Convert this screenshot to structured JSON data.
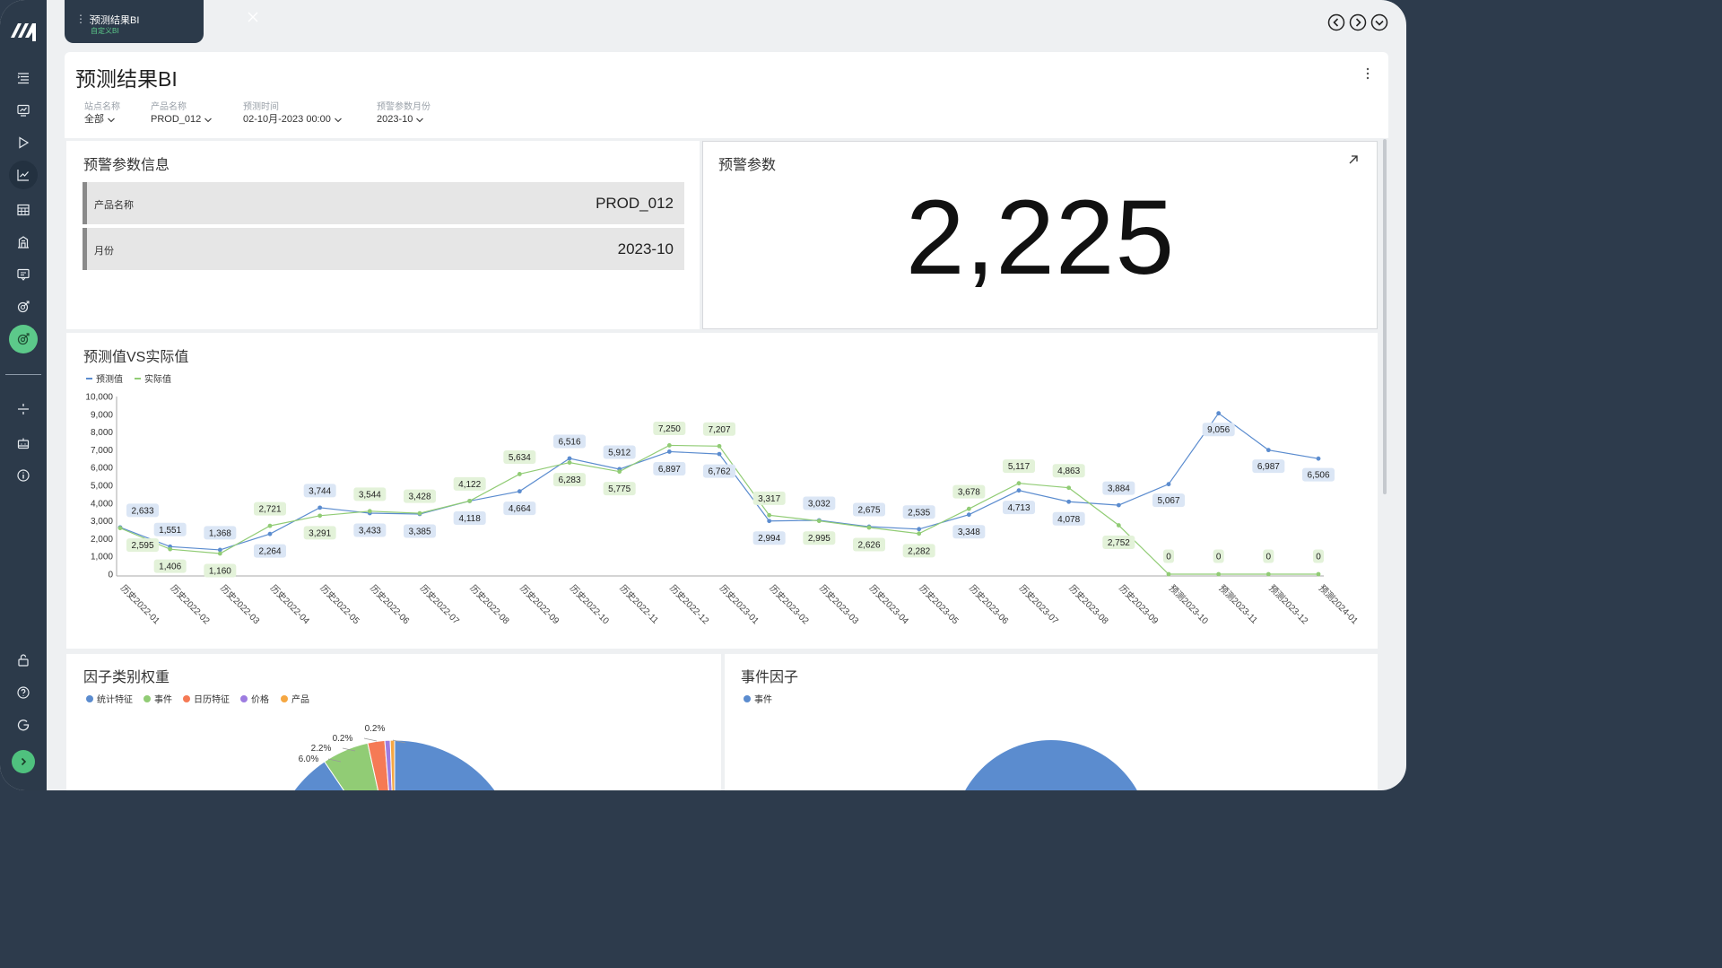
{
  "tab": {
    "title": "预测结果BI",
    "subtitle": "自定义BI"
  },
  "page_title": "预测结果BI",
  "filters": [
    {
      "label": "站点名称",
      "value": "全部"
    },
    {
      "label": "产品名称",
      "value": "PROD_012"
    },
    {
      "label": "预测时间",
      "value": "02-10月-2023 00:00"
    },
    {
      "label": "预警参数月份",
      "value": "2023-10"
    }
  ],
  "warning_info": {
    "title": "预警参数信息",
    "rows": [
      {
        "label": "产品名称",
        "value": "PROD_012"
      },
      {
        "label": "月份",
        "value": "2023-10"
      }
    ]
  },
  "warning_param": {
    "title": "预警参数",
    "value": "2,225"
  },
  "colors": {
    "forecast": "#5b8ccf",
    "actual": "#91cc75",
    "sidebar": "#2c3a4a",
    "accent": "#5cc98a"
  },
  "icons": {
    "sidebar": [
      "menu-list-icon",
      "monitor-chart-icon",
      "play-icon",
      "line-chart-icon",
      "table-icon",
      "building-icon",
      "message-icon",
      "target-search-icon",
      "target-search-active-icon",
      "split-icon",
      "robot-icon",
      "info-icon",
      "lock-icon",
      "help-icon",
      "logout-icon",
      "chevron-right-icon"
    ],
    "top_nav": [
      "circle-left-icon",
      "circle-right-icon",
      "circle-down-icon"
    ]
  },
  "chart_data": [
    {
      "type": "line",
      "title": "预测值VS实际值",
      "categories": [
        "历史2022-01",
        "历史2022-02",
        "历史2022-03",
        "历史2022-04",
        "历史2022-05",
        "历史2022-06",
        "历史2022-07",
        "历史2022-08",
        "历史2022-09",
        "历史2022-10",
        "历史2022-11",
        "历史2022-12",
        "历史2023-01",
        "历史2023-02",
        "历史2023-03",
        "历史2023-04",
        "历史2023-05",
        "历史2023-06",
        "历史2023-07",
        "历史2023-08",
        "历史2023-09",
        "预测2023-10",
        "预测2023-11",
        "预测2023-12",
        "预测2024-01"
      ],
      "series": [
        {
          "name": "预测值",
          "values": [
            2633,
            1551,
            1368,
            2264,
            3744,
            3433,
            3385,
            4118,
            4664,
            6516,
            5912,
            6897,
            6762,
            2994,
            3032,
            2675,
            2535,
            3348,
            4713,
            4078,
            3884,
            5067,
            9056,
            6987,
            6506
          ]
        },
        {
          "name": "实际值",
          "values": [
            2595,
            1406,
            1160,
            2721,
            3291,
            3544,
            3428,
            4122,
            5634,
            6283,
            5775,
            7250,
            7207,
            3317,
            2995,
            2626,
            2282,
            3678,
            5117,
            4863,
            2752,
            0,
            0,
            0,
            0
          ]
        }
      ],
      "yticks": [
        "0",
        "1,000",
        "2,000",
        "3,000",
        "4,000",
        "5,000",
        "6,000",
        "7,000",
        "8,000",
        "9,000",
        "10,000"
      ],
      "ylim": [
        0,
        10000
      ],
      "legend": "top-left",
      "grid": false
    },
    {
      "type": "pie",
      "title": "因子类别权重",
      "legend": [
        "统计特征",
        "事件",
        "日历特征",
        "价格",
        "产品"
      ],
      "legend_colors": [
        "#5b8ccf",
        "#91cc75",
        "#f57a55",
        "#9d7ce0",
        "#f5a742"
      ],
      "slice_labels": [
        "6.0%",
        "2.2%",
        "0.2%",
        "0.2%"
      ]
    },
    {
      "type": "pie",
      "title": "事件因子",
      "legend": [
        "事件"
      ],
      "legend_colors": [
        "#5b8ccf"
      ]
    }
  ]
}
